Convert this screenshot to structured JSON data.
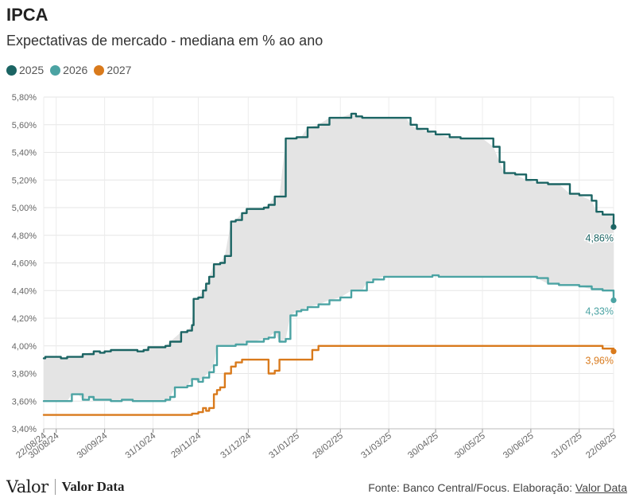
{
  "header": {
    "title": "IPCA",
    "subtitle": "Expectativas de mercado - mediana em % ao ano"
  },
  "legend": [
    {
      "label": "2025",
      "color": "#1b6463"
    },
    {
      "label": "2026",
      "color": "#4ba3a3"
    },
    {
      "label": "2027",
      "color": "#d97a1c"
    }
  ],
  "footer": {
    "logo_main": "Valor",
    "logo_data": "Valor Data",
    "source_text": "Fonte: Banco Central/Focus. Elaboração: ",
    "source_link": "Valor Data"
  },
  "chart_data": {
    "type": "line",
    "title": "IPCA",
    "subtitle": "Expectativas de mercado - mediana em % ao ano",
    "xlabel": "",
    "ylabel": "",
    "x_range": [
      "2024-08-22",
      "2025-08-22"
    ],
    "ylim": [
      3.4,
      5.8
    ],
    "y_ticks": [
      "3,40%",
      "3,60%",
      "3,80%",
      "4,00%",
      "4,20%",
      "4,40%",
      "4,60%",
      "4,80%",
      "5,00%",
      "5,20%",
      "5,40%",
      "5,60%",
      "5,80%"
    ],
    "y_tick_values": [
      3.4,
      3.6,
      3.8,
      4.0,
      4.2,
      4.4,
      4.6,
      4.8,
      5.0,
      5.2,
      5.4,
      5.6,
      5.8
    ],
    "x_ticks": [
      "22/08/24",
      "30/08/24",
      "30/09/24",
      "31/10/24",
      "29/11/24",
      "31/12/24",
      "31/01/25",
      "28/02/25",
      "31/03/25",
      "30/04/25",
      "30/05/25",
      "30/06/25",
      "31/07/25",
      "22/08/25"
    ],
    "x_tick_dates": [
      "2024-08-22",
      "2024-08-30",
      "2024-09-30",
      "2024-10-31",
      "2024-11-29",
      "2024-12-31",
      "2025-01-31",
      "2025-02-28",
      "2025-03-31",
      "2025-04-30",
      "2025-05-30",
      "2025-06-30",
      "2025-07-31",
      "2025-08-22"
    ],
    "grid": true,
    "legend_position": "top-left",
    "band_between": [
      "2025",
      "2026"
    ],
    "band_color": "#e4e4e4",
    "series": [
      {
        "name": "2025",
        "color": "#1b6463",
        "end_label": "4,86%",
        "points": [
          [
            "2024-08-22",
            3.91
          ],
          [
            "2024-08-23",
            3.92
          ],
          [
            "2024-08-30",
            3.92
          ],
          [
            "2024-09-02",
            3.91
          ],
          [
            "2024-09-06",
            3.92
          ],
          [
            "2024-09-13",
            3.92
          ],
          [
            "2024-09-16",
            3.94
          ],
          [
            "2024-09-23",
            3.96
          ],
          [
            "2024-09-27",
            3.95
          ],
          [
            "2024-09-30",
            3.96
          ],
          [
            "2024-10-04",
            3.97
          ],
          [
            "2024-10-11",
            3.97
          ],
          [
            "2024-10-18",
            3.97
          ],
          [
            "2024-10-21",
            3.96
          ],
          [
            "2024-10-25",
            3.97
          ],
          [
            "2024-10-28",
            3.99
          ],
          [
            "2024-11-01",
            3.99
          ],
          [
            "2024-11-08",
            4.0
          ],
          [
            "2024-11-11",
            4.03
          ],
          [
            "2024-11-18",
            4.1
          ],
          [
            "2024-11-22",
            4.11
          ],
          [
            "2024-11-25",
            4.15
          ],
          [
            "2024-11-26",
            4.34
          ],
          [
            "2024-11-29",
            4.35
          ],
          [
            "2024-12-02",
            4.4
          ],
          [
            "2024-12-04",
            4.45
          ],
          [
            "2024-12-06",
            4.5
          ],
          [
            "2024-12-09",
            4.59
          ],
          [
            "2024-12-13",
            4.6
          ],
          [
            "2024-12-16",
            4.65
          ],
          [
            "2024-12-20",
            4.9
          ],
          [
            "2024-12-23",
            4.91
          ],
          [
            "2024-12-27",
            4.96
          ],
          [
            "2024-12-30",
            4.99
          ],
          [
            "2025-01-03",
            4.99
          ],
          [
            "2025-01-10",
            5.0
          ],
          [
            "2025-01-13",
            5.02
          ],
          [
            "2025-01-17",
            5.08
          ],
          [
            "2025-01-20",
            5.08
          ],
          [
            "2025-01-24",
            5.5
          ],
          [
            "2025-01-31",
            5.51
          ],
          [
            "2025-02-03",
            5.51
          ],
          [
            "2025-02-07",
            5.58
          ],
          [
            "2025-02-14",
            5.6
          ],
          [
            "2025-02-21",
            5.65
          ],
          [
            "2025-02-28",
            5.65
          ],
          [
            "2025-03-07",
            5.68
          ],
          [
            "2025-03-10",
            5.66
          ],
          [
            "2025-03-14",
            5.65
          ],
          [
            "2025-03-21",
            5.65
          ],
          [
            "2025-03-28",
            5.65
          ],
          [
            "2025-04-04",
            5.65
          ],
          [
            "2025-04-11",
            5.65
          ],
          [
            "2025-04-14",
            5.6
          ],
          [
            "2025-04-18",
            5.57
          ],
          [
            "2025-04-25",
            5.55
          ],
          [
            "2025-04-30",
            5.53
          ],
          [
            "2025-05-09",
            5.51
          ],
          [
            "2025-05-16",
            5.5
          ],
          [
            "2025-05-23",
            5.5
          ],
          [
            "2025-05-30",
            5.5
          ],
          [
            "2025-06-06",
            5.44
          ],
          [
            "2025-06-10",
            5.33
          ],
          [
            "2025-06-13",
            5.25
          ],
          [
            "2025-06-20",
            5.24
          ],
          [
            "2025-06-27",
            5.2
          ],
          [
            "2025-07-04",
            5.18
          ],
          [
            "2025-07-11",
            5.17
          ],
          [
            "2025-07-18",
            5.17
          ],
          [
            "2025-07-25",
            5.1
          ],
          [
            "2025-07-31",
            5.09
          ],
          [
            "2025-08-08",
            5.05
          ],
          [
            "2025-08-11",
            4.97
          ],
          [
            "2025-08-15",
            4.95
          ],
          [
            "2025-08-21",
            4.95
          ],
          [
            "2025-08-22",
            4.86
          ]
        ]
      },
      {
        "name": "2026",
        "color": "#4ba3a3",
        "end_label": "4,33%",
        "points": [
          [
            "2024-08-22",
            3.6
          ],
          [
            "2024-08-30",
            3.6
          ],
          [
            "2024-09-06",
            3.6
          ],
          [
            "2024-09-09",
            3.65
          ],
          [
            "2024-09-13",
            3.65
          ],
          [
            "2024-09-16",
            3.61
          ],
          [
            "2024-09-20",
            3.63
          ],
          [
            "2024-09-23",
            3.61
          ],
          [
            "2024-09-27",
            3.61
          ],
          [
            "2024-09-30",
            3.61
          ],
          [
            "2024-10-04",
            3.6
          ],
          [
            "2024-10-11",
            3.61
          ],
          [
            "2024-10-18",
            3.6
          ],
          [
            "2024-10-25",
            3.6
          ],
          [
            "2024-11-01",
            3.6
          ],
          [
            "2024-11-06",
            3.6
          ],
          [
            "2024-11-08",
            3.61
          ],
          [
            "2024-11-11",
            3.63
          ],
          [
            "2024-11-14",
            3.7
          ],
          [
            "2024-11-18",
            3.7
          ],
          [
            "2024-11-22",
            3.71
          ],
          [
            "2024-11-25",
            3.76
          ],
          [
            "2024-11-29",
            3.74
          ],
          [
            "2024-12-02",
            3.77
          ],
          [
            "2024-12-06",
            3.81
          ],
          [
            "2024-12-09",
            3.86
          ],
          [
            "2024-12-11",
            4.0
          ],
          [
            "2024-12-13",
            4.0
          ],
          [
            "2024-12-20",
            4.0
          ],
          [
            "2024-12-23",
            4.01
          ],
          [
            "2024-12-27",
            4.01
          ],
          [
            "2024-12-30",
            4.03
          ],
          [
            "2025-01-03",
            4.03
          ],
          [
            "2025-01-10",
            4.05
          ],
          [
            "2025-01-13",
            4.06
          ],
          [
            "2025-01-17",
            4.1
          ],
          [
            "2025-01-20",
            4.03
          ],
          [
            "2025-01-24",
            4.05
          ],
          [
            "2025-01-27",
            4.22
          ],
          [
            "2025-01-31",
            4.25
          ],
          [
            "2025-02-03",
            4.26
          ],
          [
            "2025-02-07",
            4.28
          ],
          [
            "2025-02-14",
            4.3
          ],
          [
            "2025-02-21",
            4.33
          ],
          [
            "2025-02-28",
            4.35
          ],
          [
            "2025-03-07",
            4.4
          ],
          [
            "2025-03-14",
            4.4
          ],
          [
            "2025-03-17",
            4.46
          ],
          [
            "2025-03-21",
            4.48
          ],
          [
            "2025-03-28",
            4.5
          ],
          [
            "2025-04-11",
            4.5
          ],
          [
            "2025-04-25",
            4.5
          ],
          [
            "2025-04-28",
            4.51
          ],
          [
            "2025-05-02",
            4.5
          ],
          [
            "2025-05-16",
            4.5
          ],
          [
            "2025-05-30",
            4.5
          ],
          [
            "2025-06-13",
            4.5
          ],
          [
            "2025-06-27",
            4.5
          ],
          [
            "2025-07-04",
            4.49
          ],
          [
            "2025-07-11",
            4.45
          ],
          [
            "2025-07-18",
            4.44
          ],
          [
            "2025-07-25",
            4.44
          ],
          [
            "2025-07-31",
            4.43
          ],
          [
            "2025-08-08",
            4.41
          ],
          [
            "2025-08-15",
            4.4
          ],
          [
            "2025-08-21",
            4.4
          ],
          [
            "2025-08-22",
            4.33
          ]
        ]
      },
      {
        "name": "2027",
        "color": "#d97a1c",
        "end_label": "3,96%",
        "points": [
          [
            "2024-08-22",
            3.5
          ],
          [
            "2024-09-30",
            3.5
          ],
          [
            "2024-10-31",
            3.5
          ],
          [
            "2024-11-22",
            3.5
          ],
          [
            "2024-11-25",
            3.51
          ],
          [
            "2024-11-29",
            3.52
          ],
          [
            "2024-12-02",
            3.55
          ],
          [
            "2024-12-04",
            3.53
          ],
          [
            "2024-12-06",
            3.55
          ],
          [
            "2024-12-09",
            3.65
          ],
          [
            "2024-12-11",
            3.68
          ],
          [
            "2024-12-13",
            3.7
          ],
          [
            "2024-12-16",
            3.8
          ],
          [
            "2024-12-20",
            3.85
          ],
          [
            "2024-12-23",
            3.88
          ],
          [
            "2024-12-27",
            3.9
          ],
          [
            "2024-12-30",
            3.9
          ],
          [
            "2025-01-10",
            3.9
          ],
          [
            "2025-01-13",
            3.8
          ],
          [
            "2025-01-17",
            3.82
          ],
          [
            "2025-01-20",
            3.9
          ],
          [
            "2025-01-31",
            3.9
          ],
          [
            "2025-02-07",
            3.9
          ],
          [
            "2025-02-10",
            3.97
          ],
          [
            "2025-02-14",
            4.0
          ],
          [
            "2025-02-28",
            4.0
          ],
          [
            "2025-03-31",
            4.0
          ],
          [
            "2025-04-30",
            4.0
          ],
          [
            "2025-05-30",
            4.0
          ],
          [
            "2025-06-30",
            4.0
          ],
          [
            "2025-07-31",
            4.0
          ],
          [
            "2025-08-08",
            4.0
          ],
          [
            "2025-08-15",
            3.98
          ],
          [
            "2025-08-21",
            3.98
          ],
          [
            "2025-08-22",
            3.96
          ]
        ]
      }
    ]
  }
}
